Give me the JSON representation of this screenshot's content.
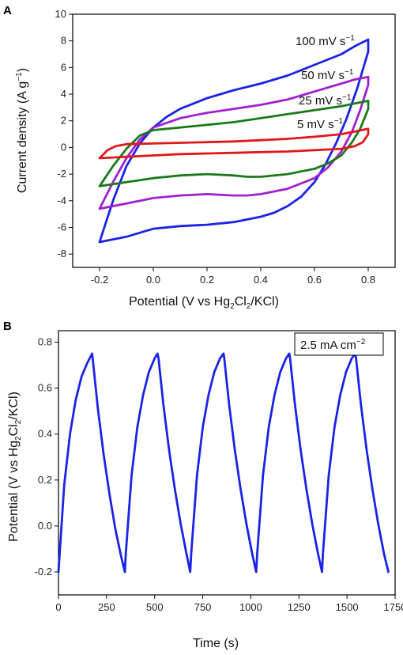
{
  "chart_data": [
    {
      "panel": "A",
      "type": "line",
      "xlabel": {
        "pre": "Potential (V vs Hg",
        "s1": "2",
        "mid": "Cl",
        "s2": "2",
        "post": "/KCl)"
      },
      "ylabel": {
        "pre": "Current density (A g",
        "sup": "−1",
        "post": ")"
      },
      "xlim": [
        -0.3,
        0.9
      ],
      "ylim": [
        -9,
        10
      ],
      "xticks": [
        "-0.2",
        "0.0",
        "0.2",
        "0.4",
        "0.6",
        "0.8"
      ],
      "yticks": [
        "-8",
        "-6",
        "-4",
        "-2",
        "0",
        "2",
        "4",
        "6",
        "8",
        "10"
      ],
      "series": [
        {
          "name": "100 mV s−1",
          "label": {
            "main": "100 mV s",
            "sup": "−1"
          },
          "color": "#1a23e6",
          "x": [
            -0.2,
            -0.15,
            -0.1,
            -0.05,
            0.0,
            0.05,
            0.1,
            0.2,
            0.3,
            0.4,
            0.5,
            0.6,
            0.7,
            0.75,
            0.8,
            0.8,
            0.76,
            0.72,
            0.68,
            0.64,
            0.6,
            0.55,
            0.5,
            0.45,
            0.4,
            0.35,
            0.3,
            0.2,
            0.1,
            0.0,
            -0.05,
            -0.1,
            -0.15,
            -0.2
          ],
          "y": [
            -7.1,
            -4.0,
            -1.4,
            0.3,
            1.5,
            2.3,
            2.9,
            3.7,
            4.3,
            4.8,
            5.4,
            6.2,
            7.0,
            7.6,
            8.1,
            7.2,
            4.5,
            2.2,
            0.3,
            -1.3,
            -2.6,
            -3.7,
            -4.4,
            -4.9,
            -5.2,
            -5.4,
            -5.6,
            -5.8,
            -5.9,
            -6.1,
            -6.4,
            -6.7,
            -6.9,
            -7.1
          ]
        },
        {
          "name": "50 mV s−1",
          "label": {
            "main": "50 mV s",
            "sup": "−1"
          },
          "color": "#a020d0",
          "x": [
            -0.2,
            -0.15,
            -0.1,
            -0.05,
            0.0,
            0.1,
            0.2,
            0.3,
            0.4,
            0.5,
            0.6,
            0.7,
            0.75,
            0.8,
            0.8,
            0.77,
            0.74,
            0.7,
            0.65,
            0.6,
            0.5,
            0.4,
            0.35,
            0.3,
            0.2,
            0.1,
            0.0,
            -0.1,
            -0.2
          ],
          "y": [
            -4.6,
            -2.6,
            -0.8,
            0.6,
            1.5,
            2.2,
            2.6,
            2.9,
            3.2,
            3.6,
            4.2,
            4.8,
            5.1,
            5.3,
            4.7,
            2.8,
            1.2,
            -0.3,
            -1.5,
            -2.3,
            -3.1,
            -3.5,
            -3.6,
            -3.6,
            -3.5,
            -3.6,
            -3.8,
            -4.2,
            -4.6
          ]
        },
        {
          "name": "25 mV s−1",
          "label": {
            "main": "25 mV s",
            "sup": "−1"
          },
          "color": "#1a7a1a",
          "x": [
            -0.2,
            -0.15,
            -0.1,
            -0.05,
            0.0,
            0.1,
            0.2,
            0.3,
            0.4,
            0.5,
            0.6,
            0.7,
            0.75,
            0.8,
            0.8,
            0.77,
            0.74,
            0.7,
            0.65,
            0.6,
            0.5,
            0.4,
            0.35,
            0.3,
            0.2,
            0.1,
            0.0,
            -0.1,
            -0.2
          ],
          "y": [
            -2.9,
            -1.4,
            -0.1,
            0.9,
            1.3,
            1.5,
            1.7,
            1.9,
            2.2,
            2.5,
            2.8,
            3.1,
            3.3,
            3.5,
            2.9,
            1.4,
            0.4,
            -0.6,
            -1.2,
            -1.6,
            -2.0,
            -2.2,
            -2.2,
            -2.1,
            -2.0,
            -2.1,
            -2.3,
            -2.6,
            -2.9
          ]
        },
        {
          "name": "5 mV s−1",
          "label": {
            "main": "5 mV s",
            "sup": "−1"
          },
          "color": "#e01818",
          "x": [
            -0.2,
            -0.17,
            -0.14,
            -0.1,
            0.0,
            0.1,
            0.2,
            0.3,
            0.4,
            0.5,
            0.6,
            0.7,
            0.75,
            0.8,
            0.8,
            0.78,
            0.75,
            0.7,
            0.6,
            0.5,
            0.4,
            0.3,
            0.2,
            0.1,
            0.0,
            -0.1,
            -0.15,
            -0.2
          ],
          "y": [
            -0.8,
            -0.2,
            0.1,
            0.25,
            0.3,
            0.35,
            0.4,
            0.45,
            0.55,
            0.65,
            0.8,
            1.0,
            1.2,
            1.4,
            1.0,
            0.4,
            0.1,
            -0.1,
            -0.2,
            -0.3,
            -0.35,
            -0.4,
            -0.45,
            -0.5,
            -0.6,
            -0.7,
            -0.75,
            -0.8
          ]
        }
      ]
    },
    {
      "panel": "B",
      "type": "line",
      "xlabel": {
        "pre": "Time (s)"
      },
      "ylabel": {
        "pre": "Potential (V vs Hg",
        "s1": "2",
        "mid": "Cl",
        "s2": "2",
        "post": "/KCl)"
      },
      "xlim": [
        0,
        1750
      ],
      "ylim": [
        -0.3,
        0.85
      ],
      "xticks": [
        "0",
        "250",
        "500",
        "750",
        "1000",
        "1250",
        "1500",
        "1750"
      ],
      "yticks": [
        "-0.2",
        "0.0",
        "0.2",
        "0.4",
        "0.6",
        "0.8"
      ],
      "annotation": {
        "main": "2.5 mA cm",
        "sup": "−2"
      },
      "series": [
        {
          "color": "#1a23e6",
          "x": [
            0,
            30,
            60,
            90,
            120,
            150,
            175,
            178,
            205,
            235,
            265,
            295,
            325,
            345,
            350,
            380,
            410,
            440,
            470,
            500,
            515,
            520,
            545,
            575,
            605,
            635,
            665,
            685,
            690,
            720,
            750,
            780,
            810,
            840,
            858,
            862,
            887,
            917,
            947,
            977,
            1007,
            1028,
            1033,
            1063,
            1093,
            1123,
            1153,
            1183,
            1200,
            1204,
            1229,
            1259,
            1289,
            1319,
            1349,
            1370,
            1375,
            1405,
            1435,
            1465,
            1495,
            1525,
            1543,
            1547,
            1572,
            1602,
            1632,
            1662,
            1692,
            1715
          ],
          "y": [
            -0.2,
            0.18,
            0.4,
            0.55,
            0.65,
            0.71,
            0.75,
            0.73,
            0.51,
            0.31,
            0.14,
            -0.01,
            -0.13,
            -0.2,
            -0.12,
            0.22,
            0.43,
            0.57,
            0.67,
            0.73,
            0.75,
            0.73,
            0.53,
            0.33,
            0.16,
            0.01,
            -0.12,
            -0.2,
            -0.12,
            0.22,
            0.43,
            0.57,
            0.67,
            0.73,
            0.75,
            0.73,
            0.53,
            0.33,
            0.16,
            0.01,
            -0.12,
            -0.2,
            -0.12,
            0.22,
            0.43,
            0.57,
            0.67,
            0.73,
            0.75,
            0.73,
            0.53,
            0.33,
            0.16,
            0.01,
            -0.12,
            -0.2,
            -0.12,
            0.22,
            0.43,
            0.57,
            0.67,
            0.73,
            0.75,
            0.73,
            0.53,
            0.33,
            0.16,
            0.01,
            -0.12,
            -0.2
          ]
        }
      ]
    }
  ]
}
